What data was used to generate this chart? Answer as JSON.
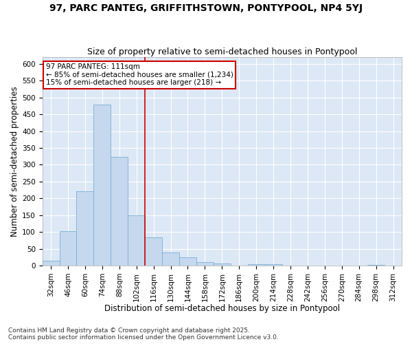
{
  "title": "97, PARC PANTEG, GRIFFITHSTOWN, PONTYPOOL, NP4 5YJ",
  "subtitle": "Size of property relative to semi-detached houses in Pontypool",
  "xlabel": "Distribution of semi-detached houses by size in Pontypool",
  "ylabel": "Number of semi-detached properties",
  "bin_labels": [
    "32sqm",
    "46sqm",
    "60sqm",
    "74sqm",
    "88sqm",
    "102sqm",
    "116sqm",
    "130sqm",
    "144sqm",
    "158sqm",
    "172sqm",
    "186sqm",
    "200sqm",
    "214sqm",
    "228sqm",
    "242sqm",
    "256sqm",
    "270sqm",
    "284sqm",
    "298sqm",
    "312sqm"
  ],
  "bar_values": [
    15,
    103,
    222,
    480,
    323,
    150,
    83,
    38,
    25,
    10,
    6,
    0,
    5,
    5,
    0,
    0,
    0,
    0,
    0,
    3,
    0
  ],
  "bar_color": "#c5d8ee",
  "bar_edge_color": "#7bafd4",
  "fig_background": "#ffffff",
  "plot_background": "#dce8f5",
  "grid_color": "#ffffff",
  "vline_color": "#cc0000",
  "vline_x_idx": 6,
  "legend_text_line1": "97 PARC PANTEG: 111sqm",
  "legend_text_line2": "← 85% of semi-detached houses are smaller (1,234)",
  "legend_text_line3": "15% of semi-detached houses are larger (218) →",
  "legend_box_color": "#cc0000",
  "footer_text": "Contains HM Land Registry data © Crown copyright and database right 2025.\nContains public sector information licensed under the Open Government Licence v3.0.",
  "ylim": [
    0,
    620
  ],
  "yticks": [
    0,
    50,
    100,
    150,
    200,
    250,
    300,
    350,
    400,
    450,
    500,
    550,
    600
  ],
  "title_fontsize": 10,
  "subtitle_fontsize": 9,
  "axis_label_fontsize": 8.5,
  "tick_fontsize": 7.5,
  "legend_fontsize": 7.5,
  "footer_fontsize": 6.5
}
